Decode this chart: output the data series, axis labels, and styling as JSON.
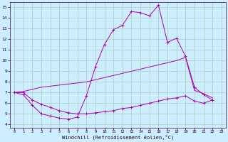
{
  "bg_color": "#cceeff",
  "grid_color": "#aaccbb",
  "line_color": "#aa00aa",
  "xlabel": "Windchill (Refroidissement éolien,°C)",
  "xlim": [
    -0.5,
    23.5
  ],
  "ylim": [
    3.7,
    15.5
  ],
  "yticks": [
    4,
    5,
    6,
    7,
    8,
    9,
    10,
    11,
    12,
    13,
    14,
    15
  ],
  "xticks": [
    0,
    1,
    2,
    3,
    4,
    5,
    6,
    7,
    8,
    9,
    10,
    11,
    12,
    13,
    14,
    15,
    16,
    17,
    18,
    19,
    20,
    21,
    22,
    23
  ],
  "line1_x": [
    0,
    1,
    2,
    3,
    4,
    5,
    6,
    7,
    8,
    9,
    10,
    11,
    12,
    13,
    14,
    15,
    16,
    17,
    18,
    19,
    20,
    21,
    22
  ],
  "line1_y": [
    7.0,
    6.8,
    5.8,
    5.0,
    4.8,
    4.6,
    4.5,
    4.7,
    6.7,
    9.4,
    11.5,
    12.9,
    13.3,
    14.6,
    14.5,
    14.2,
    15.2,
    11.7,
    12.1,
    10.4,
    7.5,
    6.8,
    6.3
  ],
  "line2_x": [
    0,
    1,
    2,
    3,
    4,
    5,
    6,
    7,
    8,
    9,
    10,
    11,
    12,
    13,
    14,
    15,
    16,
    17,
    18,
    19,
    20,
    21,
    22
  ],
  "line2_y": [
    7.0,
    7.0,
    6.3,
    5.9,
    5.6,
    5.3,
    5.1,
    5.0,
    5.0,
    5.1,
    5.2,
    5.3,
    5.5,
    5.6,
    5.8,
    6.0,
    6.2,
    6.4,
    6.5,
    6.7,
    6.2,
    6.0,
    6.3
  ],
  "line3_x": [
    0,
    1,
    2,
    3,
    4,
    5,
    6,
    7,
    8,
    9,
    10,
    11,
    12,
    13,
    14,
    15,
    16,
    17,
    18,
    19,
    20,
    21,
    22
  ],
  "line3_y": [
    7.0,
    7.1,
    7.3,
    7.5,
    7.6,
    7.7,
    7.8,
    7.9,
    8.0,
    8.2,
    8.4,
    8.6,
    8.8,
    9.0,
    9.2,
    9.4,
    9.6,
    9.8,
    10.0,
    10.3,
    7.2,
    6.9,
    6.5
  ]
}
